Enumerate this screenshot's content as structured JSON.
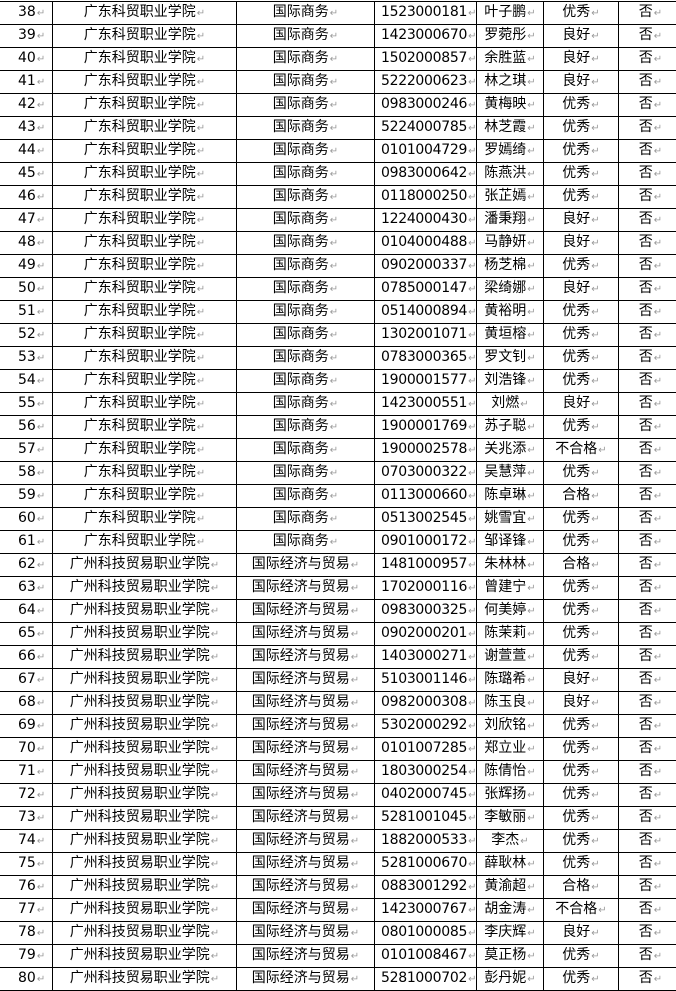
{
  "rows": [
    [
      "38",
      "广东科贸职业学院",
      "国际商务",
      "1523000181",
      "叶子鹏",
      "优秀",
      "否"
    ],
    [
      "39",
      "广东科贸职业学院",
      "国际商务",
      "1423000670",
      "罗菀彤",
      "良好",
      "否"
    ],
    [
      "40",
      "广东科贸职业学院",
      "国际商务",
      "1502000857",
      "余胜蓝",
      "良好",
      "否"
    ],
    [
      "41",
      "广东科贸职业学院",
      "国际商务",
      "5222000623",
      "林之琪",
      "良好",
      "否"
    ],
    [
      "42",
      "广东科贸职业学院",
      "国际商务",
      "0983000246",
      "黄梅映",
      "优秀",
      "否"
    ],
    [
      "43",
      "广东科贸职业学院",
      "国际商务",
      "5224000785",
      "林芝霞",
      "优秀",
      "否"
    ],
    [
      "44",
      "广东科贸职业学院",
      "国际商务",
      "0101004729",
      "罗嫣绮",
      "优秀",
      "否"
    ],
    [
      "45",
      "广东科贸职业学院",
      "国际商务",
      "0983000642",
      "陈燕洪",
      "优秀",
      "否"
    ],
    [
      "46",
      "广东科贸职业学院",
      "国际商务",
      "0118000250",
      "张芷嫣",
      "优秀",
      "否"
    ],
    [
      "47",
      "广东科贸职业学院",
      "国际商务",
      "1224000430",
      "潘秉翔",
      "良好",
      "否"
    ],
    [
      "48",
      "广东科贸职业学院",
      "国际商务",
      "0104000488",
      "马静妍",
      "良好",
      "否"
    ],
    [
      "49",
      "广东科贸职业学院",
      "国际商务",
      "0902000337",
      "杨芝棉",
      "优秀",
      "否"
    ],
    [
      "50",
      "广东科贸职业学院",
      "国际商务",
      "0785000147",
      "梁绮娜",
      "良好",
      "否"
    ],
    [
      "51",
      "广东科贸职业学院",
      "国际商务",
      "0514000894",
      "黄裕明",
      "优秀",
      "否"
    ],
    [
      "52",
      "广东科贸职业学院",
      "国际商务",
      "1302001071",
      "黄垣榕",
      "优秀",
      "否"
    ],
    [
      "53",
      "广东科贸职业学院",
      "国际商务",
      "0783000365",
      "罗文钊",
      "优秀",
      "否"
    ],
    [
      "54",
      "广东科贸职业学院",
      "国际商务",
      "1900001577",
      "刘浩锋",
      "优秀",
      "否"
    ],
    [
      "55",
      "广东科贸职业学院",
      "国际商务",
      "1423000551",
      "刘燃",
      "良好",
      "否"
    ],
    [
      "56",
      "广东科贸职业学院",
      "国际商务",
      "1900001769",
      "苏子聪",
      "优秀",
      "否"
    ],
    [
      "57",
      "广东科贸职业学院",
      "国际商务",
      "1900002578",
      "关兆添",
      "不合格",
      "否"
    ],
    [
      "58",
      "广东科贸职业学院",
      "国际商务",
      "0703000322",
      "吴慧萍",
      "优秀",
      "否"
    ],
    [
      "59",
      "广东科贸职业学院",
      "国际商务",
      "0113000660",
      "陈卓琳",
      "合格",
      "否"
    ],
    [
      "60",
      "广东科贸职业学院",
      "国际商务",
      "0513002545",
      "姚雪宜",
      "优秀",
      "否"
    ],
    [
      "61",
      "广东科贸职业学院",
      "国际商务",
      "0901000172",
      "邹译锋",
      "优秀",
      "否"
    ],
    [
      "62",
      "广州科技贸易职业学院",
      "国际经济与贸易",
      "1481000957",
      "朱林林",
      "合格",
      "否"
    ],
    [
      "63",
      "广州科技贸易职业学院",
      "国际经济与贸易",
      "1702000116",
      "曾建宁",
      "优秀",
      "否"
    ],
    [
      "64",
      "广州科技贸易职业学院",
      "国际经济与贸易",
      "0983000325",
      "何美婷",
      "优秀",
      "否"
    ],
    [
      "65",
      "广州科技贸易职业学院",
      "国际经济与贸易",
      "0902000201",
      "陈茉莉",
      "优秀",
      "否"
    ],
    [
      "66",
      "广州科技贸易职业学院",
      "国际经济与贸易",
      "1403000271",
      "谢萱萱",
      "优秀",
      "否"
    ],
    [
      "67",
      "广州科技贸易职业学院",
      "国际经济与贸易",
      "5103001146",
      "陈璐希",
      "良好",
      "否"
    ],
    [
      "68",
      "广州科技贸易职业学院",
      "国际经济与贸易",
      "0982000308",
      "陈玉良",
      "良好",
      "否"
    ],
    [
      "69",
      "广州科技贸易职业学院",
      "国际经济与贸易",
      "5302000292",
      "刘欣铭",
      "优秀",
      "否"
    ],
    [
      "70",
      "广州科技贸易职业学院",
      "国际经济与贸易",
      "0101007285",
      "郑立业",
      "优秀",
      "否"
    ],
    [
      "71",
      "广州科技贸易职业学院",
      "国际经济与贸易",
      "1803000254",
      "陈倩怡",
      "优秀",
      "否"
    ],
    [
      "72",
      "广州科技贸易职业学院",
      "国际经济与贸易",
      "0402000745",
      "张辉扬",
      "优秀",
      "否"
    ],
    [
      "73",
      "广州科技贸易职业学院",
      "国际经济与贸易",
      "5281001045",
      "李敏丽",
      "优秀",
      "否"
    ],
    [
      "74",
      "广州科技贸易职业学院",
      "国际经济与贸易",
      "1882000533",
      "李杰",
      "优秀",
      "否"
    ],
    [
      "75",
      "广州科技贸易职业学院",
      "国际经济与贸易",
      "5281000670",
      "薛耿林",
      "优秀",
      "否"
    ],
    [
      "76",
      "广州科技贸易职业学院",
      "国际经济与贸易",
      "0883001292",
      "黄渝超",
      "合格",
      "否"
    ],
    [
      "77",
      "广州科技贸易职业学院",
      "国际经济与贸易",
      "1423000767",
      "胡金涛",
      "不合格",
      "否"
    ],
    [
      "78",
      "广州科技贸易职业学院",
      "国际经济与贸易",
      "0801000085",
      "李庆辉",
      "良好",
      "否"
    ],
    [
      "79",
      "广州科技贸易职业学院",
      "国际经济与贸易",
      "0101008467",
      "莫正杨",
      "优秀",
      "否"
    ],
    [
      "80",
      "广州科技贸易职业学院",
      "国际经济与贸易",
      "5281000702",
      "彭丹妮",
      "优秀",
      "否"
    ]
  ]
}
